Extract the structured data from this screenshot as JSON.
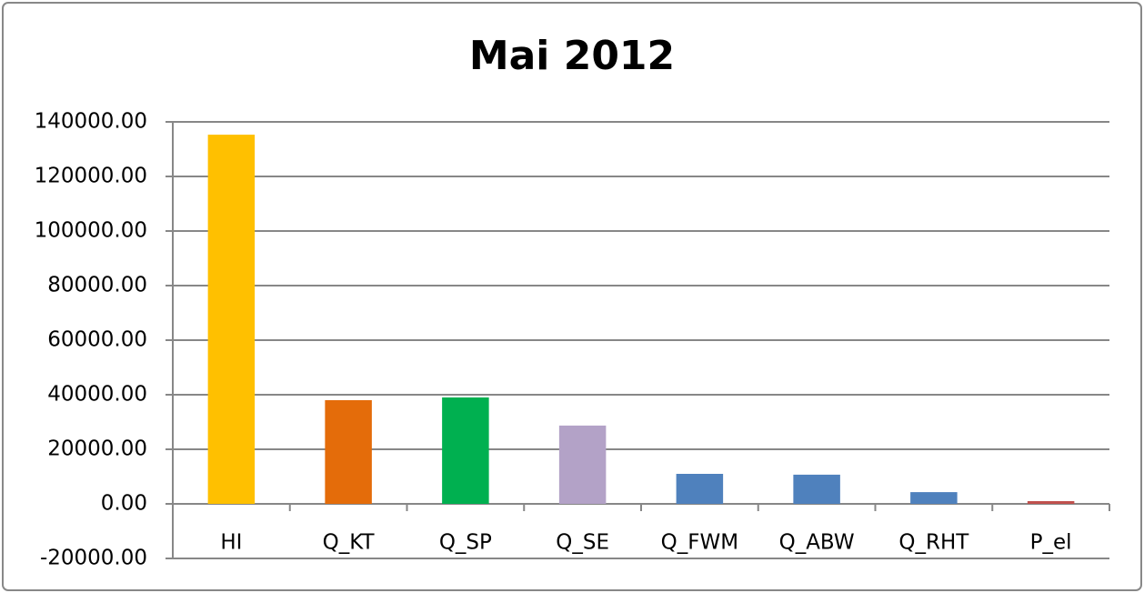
{
  "chart_data": {
    "type": "bar",
    "title": "Mai 2012",
    "categories": [
      "HI",
      "Q_KT",
      "Q_SP",
      "Q_SE",
      "Q_FWM",
      "Q_ABW",
      "Q_RHT",
      "P_el"
    ],
    "values": [
      135300,
      38000,
      39000,
      28700,
      11000,
      10700,
      4300,
      1000
    ],
    "colors": [
      "#ffc000",
      "#e46c0a",
      "#00b050",
      "#b3a2c7",
      "#4f81bd",
      "#4f81bd",
      "#4f81bd",
      "#c0504d"
    ],
    "ylim": [
      -20000,
      140000
    ],
    "yticks": [
      {
        "value": -20000,
        "label": "-20000.00"
      },
      {
        "value": 0,
        "label": "0.00"
      },
      {
        "value": 20000,
        "label": "20000.00"
      },
      {
        "value": 40000,
        "label": "40000.00"
      },
      {
        "value": 60000,
        "label": "60000.00"
      },
      {
        "value": 80000,
        "label": "80000.00"
      },
      {
        "value": 100000,
        "label": "100000.00"
      },
      {
        "value": 120000,
        "label": "120000.00"
      },
      {
        "value": 140000,
        "label": "140000.00"
      }
    ],
    "grid": true
  }
}
